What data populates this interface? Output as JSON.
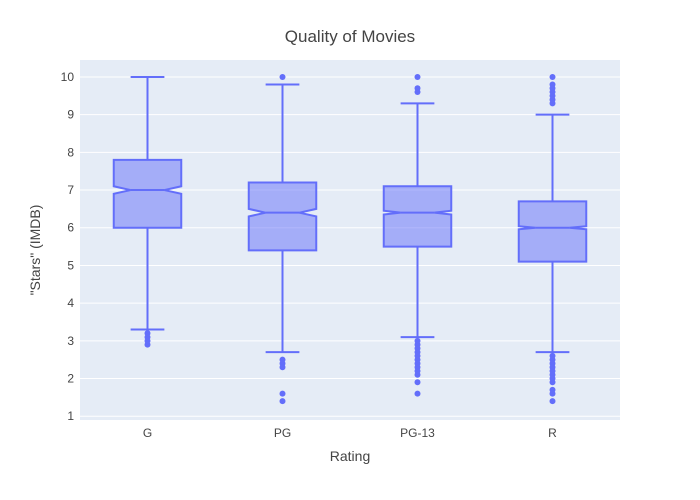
{
  "chart_data": {
    "type": "box",
    "title": "Quality of Movies",
    "xlabel": "Rating",
    "ylabel": "\"Stars\" (IMDB)",
    "notched": true,
    "categories": [
      "G",
      "PG",
      "PG-13",
      "R"
    ],
    "ylim": [
      0.9,
      10.45
    ],
    "yticks": [
      1,
      2,
      3,
      4,
      5,
      6,
      7,
      8,
      9,
      10
    ],
    "grid": true,
    "colors": {
      "plot_bg": "#e5ecf6",
      "grid": "#ffffff",
      "box_line": "#636efa",
      "box_fill": "#636efa",
      "text": "#444444"
    },
    "boxes": [
      {
        "category": "G",
        "min": 3.3,
        "q1": 6.0,
        "median": 7.0,
        "q3": 7.8,
        "max": 10.0,
        "notch_low": 6.9,
        "notch_high": 7.1,
        "outliers": [
          3.2,
          3.1,
          3.0,
          2.9
        ]
      },
      {
        "category": "PG",
        "min": 2.7,
        "q1": 5.4,
        "median": 6.4,
        "q3": 7.2,
        "max": 9.8,
        "notch_low": 6.3,
        "notch_high": 6.5,
        "outliers": [
          10.0,
          2.5,
          2.4,
          2.3,
          1.6,
          1.4
        ]
      },
      {
        "category": "PG-13",
        "min": 3.1,
        "q1": 5.5,
        "median": 6.4,
        "q3": 7.1,
        "max": 9.3,
        "notch_low": 6.35,
        "notch_high": 6.45,
        "outliers": [
          10.0,
          9.7,
          9.6,
          3.0,
          2.9,
          2.8,
          2.7,
          2.6,
          2.5,
          2.4,
          2.3,
          2.2,
          2.1,
          1.9,
          1.6
        ]
      },
      {
        "category": "R",
        "min": 2.7,
        "q1": 5.1,
        "median": 6.0,
        "q3": 6.7,
        "max": 9.0,
        "notch_low": 5.96,
        "notch_high": 6.04,
        "outliers": [
          10.0,
          9.8,
          9.7,
          9.6,
          9.5,
          9.4,
          9.3,
          2.6,
          2.5,
          2.4,
          2.3,
          2.2,
          2.1,
          2.0,
          1.9,
          1.7,
          1.6,
          1.4
        ]
      }
    ]
  }
}
